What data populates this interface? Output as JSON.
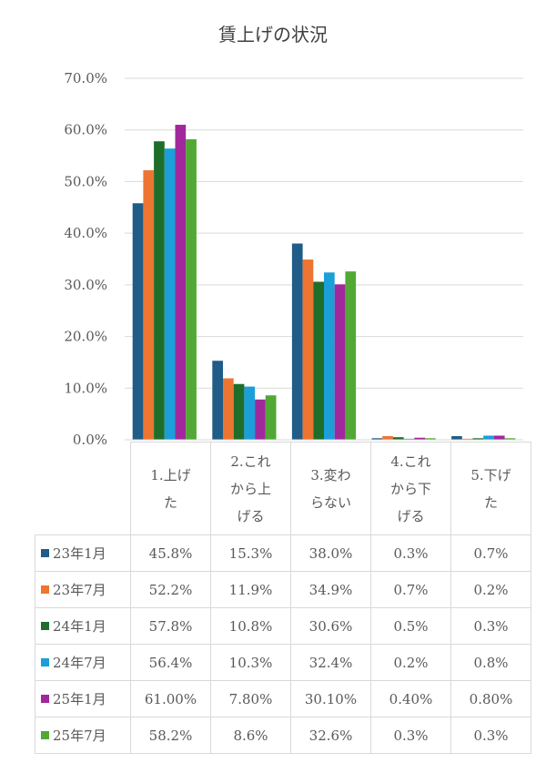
{
  "chart_data": {
    "type": "bar",
    "title": "賃上げの状況",
    "categories": [
      "1.上げた",
      "2.これから上げる",
      "3.変わらない",
      "4.これから下げる",
      "5.下げた"
    ],
    "category_lines": [
      [
        "1.上げ",
        "た"
      ],
      [
        "2.これ",
        "から上",
        "げる"
      ],
      [
        "3.変わ",
        "らない"
      ],
      [
        "4.これ",
        "から下",
        "げる"
      ],
      [
        "5.下げ",
        "た"
      ]
    ],
    "ylim": [
      0,
      70
    ],
    "yticks": [
      "0.0%",
      "10.0%",
      "20.0%",
      "30.0%",
      "40.0%",
      "50.0%",
      "60.0%",
      "70.0%"
    ],
    "grid": true,
    "legend": "table-left",
    "series": [
      {
        "name": "23年1月",
        "color": "#1f5c87",
        "values": [
          45.8,
          15.3,
          38.0,
          0.3,
          0.7
        ],
        "labels": [
          "45.8%",
          "15.3%",
          "38.0%",
          "0.3%",
          "0.7%"
        ]
      },
      {
        "name": "23年7月",
        "color": "#ed7531",
        "values": [
          52.2,
          11.9,
          34.9,
          0.7,
          0.2
        ],
        "labels": [
          "52.2%",
          "11.9%",
          "34.9%",
          "0.7%",
          "0.2%"
        ]
      },
      {
        "name": "24年1月",
        "color": "#1e6e2a",
        "values": [
          57.8,
          10.8,
          30.6,
          0.5,
          0.3
        ],
        "labels": [
          "57.8%",
          "10.8%",
          "30.6%",
          "0.5%",
          "0.3%"
        ]
      },
      {
        "name": "24年7月",
        "color": "#1a9fd9",
        "values": [
          56.4,
          10.3,
          32.4,
          0.2,
          0.8
        ],
        "labels": [
          "56.4%",
          "10.3%",
          "32.4%",
          "0.2%",
          "0.8%"
        ]
      },
      {
        "name": "25年1月",
        "color": "#a0289c",
        "values": [
          61.0,
          7.8,
          30.1,
          0.4,
          0.8
        ],
        "labels": [
          "61.00%",
          "7.80%",
          "30.10%",
          "0.40%",
          "0.80%"
        ]
      },
      {
        "name": "25年7月",
        "color": "#52a834",
        "values": [
          58.2,
          8.6,
          32.6,
          0.3,
          0.3
        ],
        "labels": [
          "58.2%",
          "8.6%",
          "32.6%",
          "0.3%",
          "0.3%"
        ]
      }
    ]
  }
}
